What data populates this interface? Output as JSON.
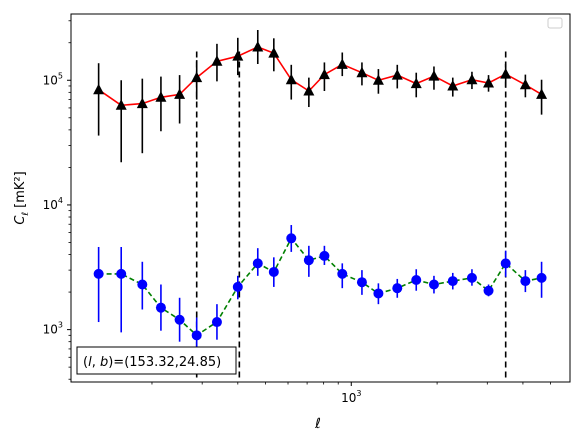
{
  "chart_data": {
    "type": "scatter",
    "title": "",
    "xlabel": "ℓ",
    "ylabel_main": "C",
    "ylabel_sub": "ℓ",
    "ylabel_unit": "[mK²]",
    "x_scale": "log",
    "y_scale": "log",
    "xlim": [
      104,
      5850
    ],
    "ylim": [
      380,
      340000
    ],
    "x_ticks": [
      {
        "value": 1000,
        "base": "10",
        "exp": "3"
      }
    ],
    "y_ticks": [
      {
        "value": 1000,
        "base": "10",
        "exp": "3"
      },
      {
        "value": 10000,
        "base": "10",
        "exp": "4"
      },
      {
        "value": 100000,
        "base": "10",
        "exp": "5"
      }
    ],
    "grid": false,
    "legend": "top-right",
    "legend_entries": [],
    "vlines": [
      287,
      405,
      3480
    ],
    "annotation": {
      "prefix": "(",
      "l": "l",
      "sep": ", ",
      "b": "b",
      "suffix": ")=(153.32,24.85)"
    },
    "series": [
      {
        "line_color": "#ff0000",
        "line_style": "solid",
        "marker": "triangle",
        "marker_color": "#000000",
        "err_color": "#000000",
        "x": [
          130,
          156,
          185,
          215,
          250,
          287,
          338,
          400,
          470,
          535,
          616,
          710,
          805,
          930,
          1090,
          1245,
          1450,
          1690,
          1950,
          2270,
          2650,
          3030,
          3480,
          4080,
          4650
        ],
        "y": [
          84000,
          63000,
          65000,
          73000,
          77000,
          105000,
          142000,
          156000,
          185000,
          165000,
          101000,
          82000,
          111000,
          134000,
          115000,
          100000,
          110000,
          94000,
          108000,
          90000,
          101000,
          95000,
          112000,
          92000,
          77000
        ],
        "y_lo": [
          36000,
          22000,
          26000,
          39000,
          45000,
          70000,
          98000,
          110000,
          135000,
          118000,
          70000,
          61000,
          82000,
          108000,
          91000,
          78000,
          86000,
          73000,
          84000,
          74000,
          85000,
          81000,
          87000,
          73000,
          53000
        ],
        "y_hi": [
          137000,
          100000,
          103000,
          107000,
          110000,
          145000,
          196000,
          219000,
          253000,
          217000,
          133000,
          105000,
          139000,
          167000,
          139000,
          123000,
          133000,
          115000,
          129000,
          105000,
          117000,
          110000,
          135000,
          111000,
          101000
        ]
      },
      {
        "line_color": "#008000",
        "line_style": "dashed",
        "marker": "circle",
        "marker_color": "#0000ff",
        "err_color": "#0000ff",
        "x": [
          130,
          156,
          185,
          215,
          250,
          287,
          338,
          400,
          470,
          535,
          616,
          710,
          805,
          930,
          1090,
          1245,
          1450,
          1690,
          1950,
          2270,
          2650,
          3030,
          3480,
          4080,
          4650
        ],
        "y": [
          2800,
          2800,
          2300,
          1500,
          1200,
          900,
          1150,
          2200,
          3400,
          2900,
          5400,
          3600,
          3900,
          2800,
          2400,
          1950,
          2150,
          2500,
          2300,
          2450,
          2600,
          2050,
          3400,
          2450,
          2600
        ],
        "y_lo": [
          1150,
          950,
          1450,
          980,
          800,
          650,
          830,
          1750,
          2700,
          2200,
          4200,
          2650,
          3300,
          2150,
          1900,
          1600,
          1800,
          2050,
          1950,
          2100,
          2250,
          1850,
          2650,
          2000,
          1800
        ],
        "y_hi": [
          4600,
          4600,
          3500,
          2300,
          1800,
          1250,
          1600,
          2700,
          4500,
          3800,
          6900,
          4700,
          4700,
          3400,
          3000,
          2350,
          2550,
          3050,
          2700,
          2850,
          3050,
          2300,
          4300,
          3000,
          3500
        ]
      }
    ]
  }
}
